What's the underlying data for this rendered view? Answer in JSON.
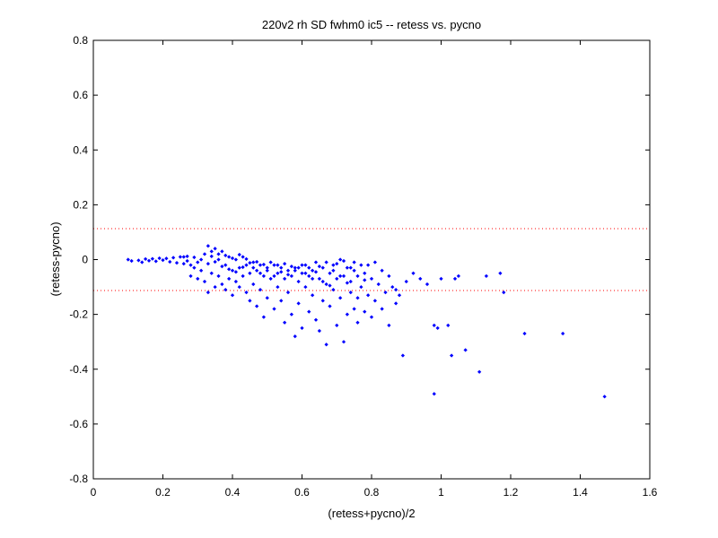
{
  "chart_data": {
    "type": "scatter",
    "title": "220v2 rh SD fwhm0 ic5 -- retess vs. pycno",
    "xlabel": "(retess+pycno)/2",
    "ylabel": "(retess-pycno)",
    "xlim": [
      0,
      1.6
    ],
    "ylim": [
      -0.8,
      0.8
    ],
    "xticks": [
      "0",
      "0.2",
      "0.4",
      "0.6",
      "0.8",
      "1",
      "1.2",
      "1.4",
      "1.6"
    ],
    "yticks": [
      "-0.8",
      "-0.6",
      "-0.4",
      "-0.2",
      "0",
      "0.2",
      "0.4",
      "0.6",
      "0.8"
    ],
    "grid": false,
    "colors": {
      "points": "#0000ff",
      "reference_lines": "#ff0000",
      "axes": "#000000"
    },
    "reference_lines": [
      {
        "axis": "y",
        "value": 0.113,
        "style": "dotted"
      },
      {
        "axis": "y",
        "value": -0.113,
        "style": "dotted"
      }
    ],
    "series": [
      {
        "marker": "dot",
        "points": [
          [
            0.1,
            0.0
          ],
          [
            0.11,
            -0.005
          ],
          [
            0.13,
            -0.003
          ],
          [
            0.14,
            -0.01
          ],
          [
            0.15,
            0.002
          ],
          [
            0.16,
            -0.004
          ],
          [
            0.17,
            0.003
          ],
          [
            0.18,
            -0.006
          ],
          [
            0.19,
            0.005
          ],
          [
            0.2,
            -0.002
          ],
          [
            0.21,
            0.004
          ],
          [
            0.22,
            -0.008
          ],
          [
            0.23,
            0.007
          ],
          [
            0.24,
            -0.012
          ],
          [
            0.25,
            0.01
          ],
          [
            0.26,
            -0.015
          ],
          [
            0.27,
            0.012
          ],
          [
            0.28,
            -0.02
          ],
          [
            0.28,
            -0.06
          ],
          [
            0.29,
            -0.03
          ],
          [
            0.3,
            -0.01
          ],
          [
            0.3,
            -0.07
          ],
          [
            0.31,
            -0.04
          ],
          [
            0.32,
            0.02
          ],
          [
            0.32,
            -0.08
          ],
          [
            0.33,
            0.05
          ],
          [
            0.33,
            -0.12
          ],
          [
            0.34,
            0.03
          ],
          [
            0.34,
            -0.05
          ],
          [
            0.35,
            0.04
          ],
          [
            0.35,
            -0.1
          ],
          [
            0.36,
            0.0
          ],
          [
            0.36,
            -0.06
          ],
          [
            0.37,
            0.03
          ],
          [
            0.37,
            -0.09
          ],
          [
            0.38,
            -0.02
          ],
          [
            0.38,
            -0.11
          ],
          [
            0.39,
            0.01
          ],
          [
            0.39,
            -0.07
          ],
          [
            0.4,
            -0.04
          ],
          [
            0.4,
            -0.13
          ],
          [
            0.41,
            0.0
          ],
          [
            0.41,
            -0.08
          ],
          [
            0.42,
            -0.03
          ],
          [
            0.42,
            -0.1
          ],
          [
            0.43,
            0.01
          ],
          [
            0.43,
            -0.06
          ],
          [
            0.44,
            -0.02
          ],
          [
            0.44,
            -0.12
          ],
          [
            0.45,
            -0.05
          ],
          [
            0.45,
            -0.15
          ],
          [
            0.46,
            -0.01
          ],
          [
            0.46,
            -0.09
          ],
          [
            0.47,
            -0.04
          ],
          [
            0.47,
            -0.17
          ],
          [
            0.48,
            -0.02
          ],
          [
            0.48,
            -0.11
          ],
          [
            0.49,
            -0.06
          ],
          [
            0.49,
            -0.21
          ],
          [
            0.5,
            -0.03
          ],
          [
            0.5,
            -0.14
          ],
          [
            0.51,
            -0.07
          ],
          [
            0.52,
            -0.02
          ],
          [
            0.52,
            -0.18
          ],
          [
            0.53,
            -0.05
          ],
          [
            0.53,
            -0.1
          ],
          [
            0.54,
            -0.03
          ],
          [
            0.54,
            -0.15
          ],
          [
            0.55,
            -0.07
          ],
          [
            0.55,
            -0.23
          ],
          [
            0.56,
            -0.04
          ],
          [
            0.56,
            -0.12
          ],
          [
            0.57,
            -0.06
          ],
          [
            0.57,
            -0.2
          ],
          [
            0.58,
            -0.03
          ],
          [
            0.58,
            -0.28
          ],
          [
            0.59,
            -0.08
          ],
          [
            0.59,
            -0.16
          ],
          [
            0.6,
            -0.05
          ],
          [
            0.6,
            -0.25
          ],
          [
            0.61,
            -0.02
          ],
          [
            0.61,
            -0.1
          ],
          [
            0.62,
            -0.06
          ],
          [
            0.62,
            -0.19
          ],
          [
            0.63,
            -0.04
          ],
          [
            0.63,
            -0.13
          ],
          [
            0.64,
            -0.01
          ],
          [
            0.64,
            -0.22
          ],
          [
            0.65,
            -0.07
          ],
          [
            0.65,
            -0.26
          ],
          [
            0.66,
            -0.03
          ],
          [
            0.66,
            -0.15
          ],
          [
            0.67,
            -0.09
          ],
          [
            0.67,
            -0.31
          ],
          [
            0.68,
            -0.05
          ],
          [
            0.68,
            -0.17
          ],
          [
            0.69,
            -0.02
          ],
          [
            0.69,
            -0.11
          ],
          [
            0.7,
            -0.07
          ],
          [
            0.7,
            -0.24
          ],
          [
            0.71,
            0.0
          ],
          [
            0.71,
            -0.14
          ],
          [
            0.72,
            -0.06
          ],
          [
            0.72,
            -0.3
          ],
          [
            0.73,
            -0.03
          ],
          [
            0.73,
            -0.2
          ],
          [
            0.74,
            -0.08
          ],
          [
            0.74,
            -0.12
          ],
          [
            0.75,
            -0.04
          ],
          [
            0.75,
            -0.18
          ],
          [
            0.76,
            -0.06
          ],
          [
            0.76,
            -0.23
          ],
          [
            0.77,
            -0.1
          ],
          [
            0.78,
            -0.05
          ],
          [
            0.78,
            -0.19
          ],
          [
            0.79,
            -0.02
          ],
          [
            0.79,
            -0.13
          ],
          [
            0.8,
            -0.07
          ],
          [
            0.8,
            -0.21
          ],
          [
            0.81,
            -0.01
          ],
          [
            0.81,
            -0.15
          ],
          [
            0.82,
            -0.09
          ],
          [
            0.83,
            -0.04
          ],
          [
            0.83,
            -0.18
          ],
          [
            0.84,
            -0.12
          ],
          [
            0.85,
            -0.06
          ],
          [
            0.85,
            -0.24
          ],
          [
            0.86,
            -0.1
          ],
          [
            0.87,
            -0.11
          ],
          [
            0.87,
            -0.16
          ],
          [
            0.88,
            -0.13
          ],
          [
            0.89,
            -0.35
          ],
          [
            0.9,
            -0.08
          ],
          [
            0.92,
            -0.05
          ],
          [
            0.94,
            -0.07
          ],
          [
            0.96,
            -0.09
          ],
          [
            0.98,
            -0.24
          ],
          [
            0.98,
            -0.49
          ],
          [
            0.99,
            -0.25
          ],
          [
            1.0,
            -0.07
          ],
          [
            1.02,
            -0.24
          ],
          [
            1.03,
            -0.35
          ],
          [
            1.04,
            -0.07
          ],
          [
            1.05,
            -0.06
          ],
          [
            1.07,
            -0.33
          ],
          [
            1.11,
            -0.41
          ],
          [
            1.13,
            -0.06
          ],
          [
            1.17,
            -0.05
          ],
          [
            1.18,
            -0.12
          ],
          [
            1.24,
            -0.27
          ],
          [
            1.35,
            -0.27
          ],
          [
            1.47,
            -0.5
          ],
          [
            0.26,
            0.01
          ],
          [
            0.27,
            -0.005
          ],
          [
            0.29,
            0.008
          ],
          [
            0.31,
            0.0
          ],
          [
            0.33,
            -0.015
          ],
          [
            0.34,
            0.012
          ],
          [
            0.35,
            -0.008
          ],
          [
            0.36,
            0.02
          ],
          [
            0.37,
            -0.025
          ],
          [
            0.38,
            0.015
          ],
          [
            0.39,
            -0.035
          ],
          [
            0.4,
            0.005
          ],
          [
            0.41,
            -0.045
          ],
          [
            0.42,
            0.018
          ],
          [
            0.43,
            -0.028
          ],
          [
            0.44,
            0.002
          ],
          [
            0.45,
            -0.012
          ],
          [
            0.46,
            -0.03
          ],
          [
            0.47,
            -0.008
          ],
          [
            0.48,
            -0.05
          ],
          [
            0.49,
            -0.018
          ],
          [
            0.5,
            -0.04
          ],
          [
            0.51,
            -0.01
          ],
          [
            0.52,
            -0.06
          ],
          [
            0.53,
            -0.02
          ],
          [
            0.54,
            -0.045
          ],
          [
            0.55,
            -0.015
          ],
          [
            0.56,
            -0.055
          ],
          [
            0.57,
            -0.025
          ],
          [
            0.58,
            -0.04
          ],
          [
            0.59,
            -0.03
          ],
          [
            0.6,
            -0.02
          ],
          [
            0.61,
            -0.05
          ],
          [
            0.62,
            -0.03
          ],
          [
            0.63,
            -0.07
          ],
          [
            0.64,
            -0.045
          ],
          [
            0.65,
            -0.025
          ],
          [
            0.66,
            -0.08
          ],
          [
            0.67,
            -0.01
          ],
          [
            0.68,
            -0.095
          ],
          [
            0.69,
            -0.04
          ],
          [
            0.7,
            -0.015
          ],
          [
            0.71,
            -0.06
          ],
          [
            0.72,
            -0.005
          ],
          [
            0.73,
            -0.085
          ],
          [
            0.74,
            -0.03
          ],
          [
            0.75,
            -0.01
          ],
          [
            0.76,
            -0.14
          ],
          [
            0.77,
            -0.02
          ],
          [
            0.78,
            -0.075
          ]
        ]
      }
    ]
  }
}
